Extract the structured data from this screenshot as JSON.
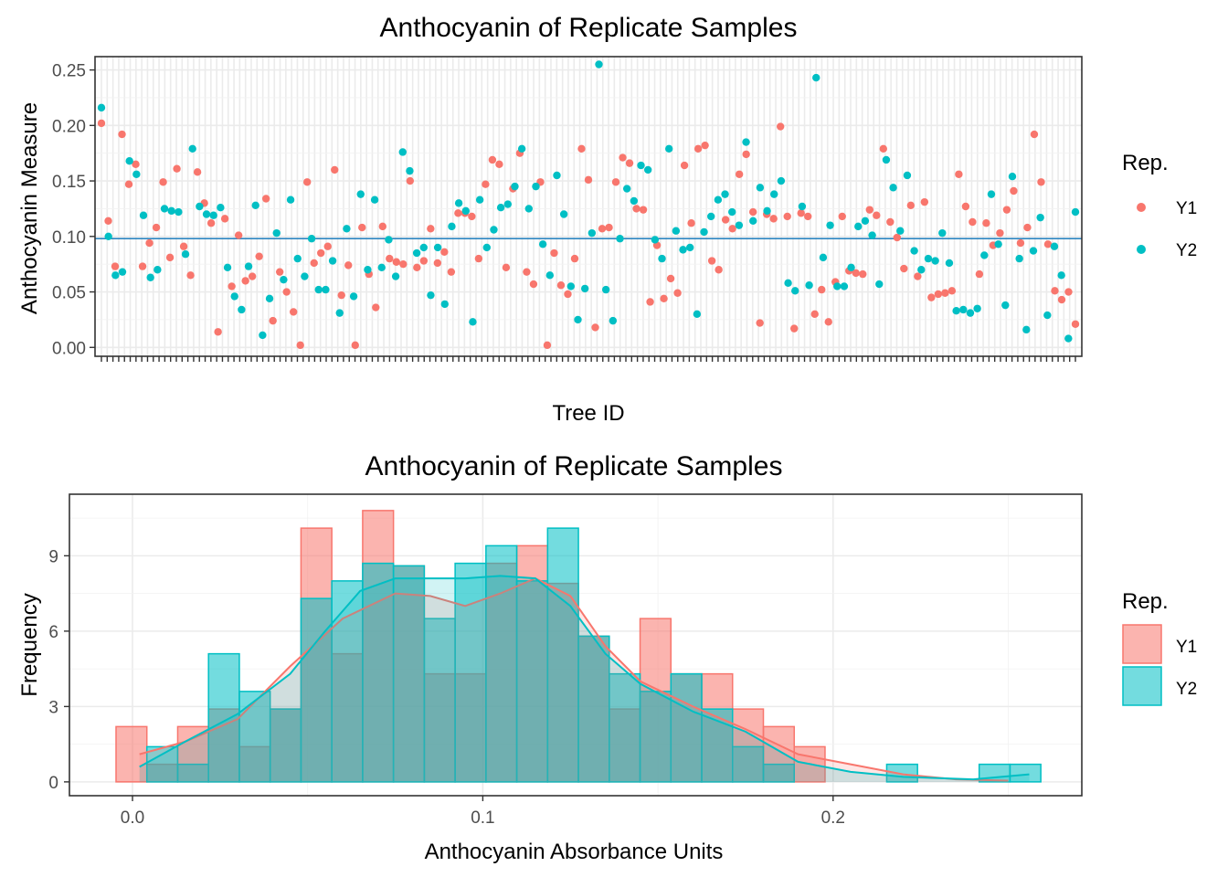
{
  "colors": {
    "Y1": "#F8766D",
    "Y2": "#00BFC4",
    "hline": "#2E86C1"
  },
  "chart_data": [
    {
      "type": "scatter",
      "title": "Anthocyanin of Replicate Samples",
      "xlabel": "Tree ID",
      "ylabel": "Anthocyanin Measure",
      "ylim": [
        -0.008,
        0.262
      ],
      "yticks": [
        0.0,
        0.05,
        0.1,
        0.15,
        0.2,
        0.25
      ],
      "ytick_labels": [
        "0.00",
        "0.05",
        "0.10",
        "0.15",
        "0.20",
        "0.25"
      ],
      "reference_line": 0.098,
      "legend": {
        "title": "Rep.",
        "position": "right",
        "entries": [
          "Y1",
          "Y2"
        ]
      },
      "n_categories": 170,
      "series": [
        {
          "name": "Y1",
          "values": [
            0.202,
            0.114,
            0.073,
            0.192,
            0.147,
            0.165,
            0.073,
            0.094,
            0.108,
            0.149,
            0.081,
            0.161,
            0.091,
            0.065,
            0.158,
            0.13,
            0.112,
            0.014,
            0.116,
            0.055,
            0.101,
            0.06,
            0.064,
            0.082,
            0.134,
            0.024,
            0.068,
            0.05,
            0.032,
            0.002,
            0.149,
            0.076,
            0.085,
            0.091,
            0.16,
            0.047,
            0.074,
            0.002,
            0.108,
            0.066,
            0.036,
            0.109,
            0.08,
            0.077,
            0.075,
            0.15,
            0.072,
            0.078,
            0.107,
            0.076,
            0.086,
            0.068,
            0.121,
            0.121,
            0.118,
            0.08,
            0.147,
            0.169,
            0.165,
            0.072,
            0.143,
            0.175,
            0.068,
            0.057,
            0.149,
            0.002,
            0.085,
            0.056,
            0.048,
            0.08,
            0.179,
            0.151,
            0.018,
            0.107,
            0.108,
            0.149,
            0.171,
            0.166,
            0.125,
            0.124,
            0.041,
            0.092,
            0.044,
            0.062,
            0.049,
            0.164,
            0.112,
            0.179,
            0.182,
            0.078,
            0.07,
            0.115,
            0.107,
            0.156,
            0.174,
            0.122,
            0.022,
            0.12,
            0.116,
            0.199,
            0.118,
            0.017,
            0.121,
            0.118,
            0.03,
            0.052,
            0.023,
            0.059,
            0.118,
            0.069,
            0.067,
            0.066,
            0.124,
            0.119,
            0.179,
            0.113,
            0.099,
            0.071,
            0.128,
            0.064,
            0.131,
            0.045,
            0.048,
            0.049,
            0.051,
            0.156,
            0.127,
            0.113,
            0.066,
            0.112,
            0.092,
            0.103,
            0.124,
            0.141,
            0.094,
            0.108,
            0.192,
            0.149,
            0.093,
            0.051,
            0.043,
            0.05,
            0.021
          ]
        },
        {
          "name": "Y2",
          "values": [
            0.216,
            0.1,
            0.065,
            0.068,
            0.168,
            0.156,
            0.119,
            0.063,
            0.07,
            0.125,
            0.123,
            0.122,
            0.084,
            0.179,
            0.127,
            0.12,
            0.119,
            0.126,
            0.072,
            0.046,
            0.034,
            0.073,
            0.128,
            0.011,
            0.044,
            0.103,
            0.061,
            0.133,
            0.08,
            0.064,
            0.098,
            0.052,
            0.052,
            0.078,
            0.031,
            0.107,
            0.046,
            0.138,
            0.07,
            0.133,
            0.072,
            0.097,
            0.064,
            0.176,
            0.159,
            0.085,
            0.09,
            0.047,
            0.09,
            0.039,
            0.109,
            0.13,
            0.123,
            0.023,
            0.133,
            0.09,
            0.106,
            0.126,
            0.129,
            0.145,
            0.179,
            0.125,
            0.145,
            0.093,
            0.065,
            0.155,
            0.12,
            0.055,
            0.025,
            0.053,
            0.103,
            0.255,
            0.052,
            0.024,
            0.098,
            0.143,
            0.132,
            0.164,
            0.16,
            0.097,
            0.08,
            0.179,
            0.105,
            0.088,
            0.09,
            0.03,
            0.104,
            0.118,
            0.133,
            0.138,
            0.122,
            0.11,
            0.185,
            0.114,
            0.144,
            0.123,
            0.138,
            0.15,
            0.058,
            0.051,
            0.127,
            0.056,
            0.243,
            0.081,
            0.11,
            0.055,
            0.055,
            0.072,
            0.109,
            0.114,
            0.101,
            0.057,
            0.169,
            0.144,
            0.105,
            0.155,
            0.087,
            0.07,
            0.08,
            0.078,
            0.103,
            0.076,
            0.033,
            0.034,
            0.031,
            0.035,
            0.083,
            0.138,
            0.093,
            0.038,
            0.154,
            0.08,
            0.016,
            0.087,
            0.117,
            0.029,
            0.091,
            0.065,
            0.008,
            0.122
          ]
        }
      ],
      "xtick_labels_note": ""
    },
    {
      "type": "bar",
      "subtype": "histogram-with-density",
      "title": "Anthocyanin of Replicate Samples",
      "xlabel": "Anthocyanin Absorbance Units",
      "ylabel": "Frequency",
      "xlim": [
        -0.018,
        0.271
      ],
      "ylim": [
        -0.55,
        11.45
      ],
      "xticks": [
        0.0,
        0.1,
        0.2
      ],
      "xtick_labels": [
        "0.0",
        "0.1",
        "0.2"
      ],
      "yticks": [
        0,
        3,
        6,
        9
      ],
      "ytick_labels": [
        "0",
        "3",
        "6",
        "9"
      ],
      "bin_width": 0.0088,
      "legend": {
        "title": "Rep.",
        "position": "right",
        "entries": [
          "Y1",
          "Y2"
        ]
      },
      "series": [
        {
          "name": "Y1",
          "bin_starts": [
            -0.0047,
            0.0041,
            0.0129,
            0.0217,
            0.0305,
            0.0393,
            0.0481,
            0.0569,
            0.0657,
            0.0745,
            0.0833,
            0.0921,
            0.1009,
            0.1097,
            0.1185,
            0.1273,
            0.1361,
            0.1449,
            0.1537,
            0.1625,
            0.1713,
            0.1801,
            0.1889,
            0.1977,
            0.2065,
            0.2153,
            0.2241,
            0.2329,
            0.2417,
            0.2505
          ],
          "counts": [
            2.2,
            0.7,
            2.2,
            2.9,
            1.4,
            2.9,
            10.1,
            5.1,
            10.8,
            8.6,
            4.3,
            4.3,
            8.7,
            9.4,
            7.9,
            5.8,
            2.9,
            6.5,
            4.3,
            4.3,
            2.9,
            2.2,
            1.4,
            0,
            0,
            0,
            0,
            0,
            0,
            0
          ],
          "density": [
            [
              0.002,
              1.1
            ],
            [
              0.015,
              1.6
            ],
            [
              0.03,
              2.5
            ],
            [
              0.045,
              4.6
            ],
            [
              0.06,
              6.5
            ],
            [
              0.075,
              7.5
            ],
            [
              0.085,
              7.4
            ],
            [
              0.095,
              7.0
            ],
            [
              0.105,
              7.5
            ],
            [
              0.115,
              8.1
            ],
            [
              0.125,
              7.4
            ],
            [
              0.135,
              5.4
            ],
            [
              0.145,
              4.0
            ],
            [
              0.16,
              3.0
            ],
            [
              0.175,
              2.1
            ],
            [
              0.19,
              1.1
            ],
            [
              0.205,
              0.7
            ],
            [
              0.22,
              0.3
            ],
            [
              0.235,
              0.1
            ],
            [
              0.25,
              0.05
            ]
          ]
        },
        {
          "name": "Y2",
          "bin_starts": [
            -0.0047,
            0.0041,
            0.0129,
            0.0217,
            0.0305,
            0.0393,
            0.0481,
            0.0569,
            0.0657,
            0.0745,
            0.0833,
            0.0921,
            0.1009,
            0.1097,
            0.1185,
            0.1273,
            0.1361,
            0.1449,
            0.1537,
            0.1625,
            0.1713,
            0.1801,
            0.1889,
            0.1977,
            0.2065,
            0.2153,
            0.2241,
            0.2329,
            0.2417,
            0.2505
          ],
          "counts": [
            0,
            1.4,
            0.7,
            5.1,
            3.6,
            2.9,
            7.3,
            8.0,
            8.7,
            8.6,
            6.5,
            8.7,
            9.4,
            8.0,
            10.1,
            5.8,
            4.3,
            3.6,
            4.3,
            2.9,
            1.4,
            0.7,
            0,
            0,
            0,
            0.7,
            0,
            0,
            0.7,
            0.7
          ],
          "density": [
            [
              0.002,
              0.6
            ],
            [
              0.015,
              1.6
            ],
            [
              0.03,
              2.7
            ],
            [
              0.045,
              4.3
            ],
            [
              0.055,
              6.0
            ],
            [
              0.065,
              7.6
            ],
            [
              0.075,
              8.1
            ],
            [
              0.085,
              8.1
            ],
            [
              0.095,
              8.1
            ],
            [
              0.105,
              8.2
            ],
            [
              0.115,
              8.1
            ],
            [
              0.125,
              7.0
            ],
            [
              0.135,
              5.1
            ],
            [
              0.145,
              3.9
            ],
            [
              0.16,
              2.8
            ],
            [
              0.175,
              2.0
            ],
            [
              0.19,
              0.8
            ],
            [
              0.205,
              0.4
            ],
            [
              0.22,
              0.2
            ],
            [
              0.24,
              0.1
            ],
            [
              0.256,
              0.3
            ]
          ]
        }
      ]
    }
  ]
}
